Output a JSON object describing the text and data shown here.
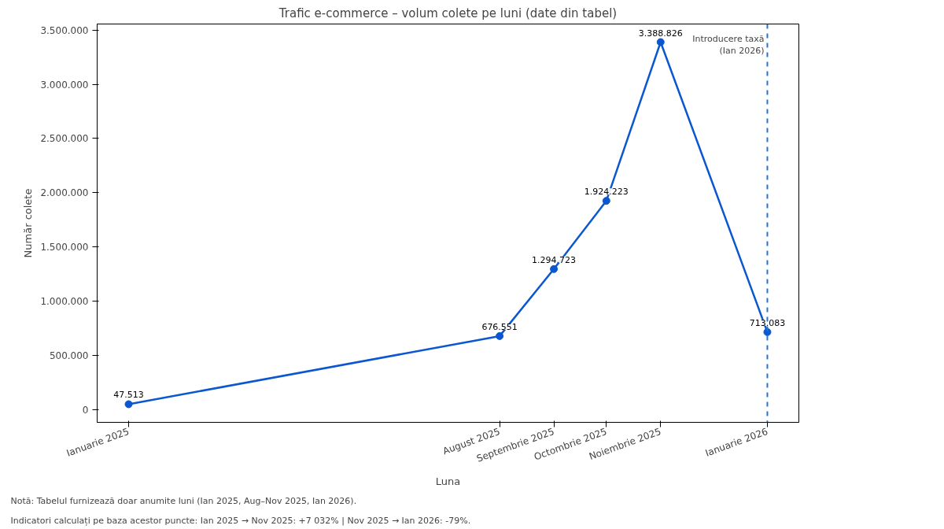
{
  "chart_data": {
    "type": "line",
    "title": "Trafic e-commerce – volum colete pe luni (date din tabel)",
    "xlabel": "Luna",
    "ylabel": "Număr colete",
    "x": [
      "2025-01",
      "2025-08",
      "2025-09",
      "2025-10",
      "2025-11",
      "2026-01"
    ],
    "series": [
      {
        "color": "#0b57d0",
        "values": [
          47513,
          676551,
          1294723,
          1924223,
          3388826,
          713083
        ],
        "value_labels": [
          "47.513",
          "676.551",
          "1.294.723",
          "1.924.223",
          "3.388.826",
          "713.083"
        ]
      }
    ],
    "xlim": [
      "2024-12-14",
      "2026-01-19"
    ],
    "xticks": [
      {
        "value": "2025-01",
        "label": "Ianuarie 2025"
      },
      {
        "value": "2025-08",
        "label": "August 2025"
      },
      {
        "value": "2025-09",
        "label": "Septembrie 2025"
      },
      {
        "value": "2025-10",
        "label": "Octombrie 2025"
      },
      {
        "value": "2025-11",
        "label": "Noiembrie 2025"
      },
      {
        "value": "2026-01",
        "label": "Ianuarie 2026"
      }
    ],
    "ylim": [
      -119553,
      3555892
    ],
    "yticks": [
      {
        "value": 0,
        "label": "0"
      },
      {
        "value": 500000,
        "label": "500.000"
      },
      {
        "value": 1000000,
        "label": "1.000.000"
      },
      {
        "value": 1500000,
        "label": "1.500.000"
      },
      {
        "value": 2000000,
        "label": "2.000.000"
      },
      {
        "value": 2500000,
        "label": "2.500.000"
      },
      {
        "value": 3000000,
        "label": "3.000.000"
      },
      {
        "value": 3500000,
        "label": "3.500.000"
      }
    ],
    "ref_lines": [
      {
        "axis": "x",
        "value": "2026-01",
        "label": "Introducere taxă\n(Ian 2026)",
        "color": "#1f77d4",
        "line_style": "dashed"
      }
    ],
    "annotations": [
      "Notă: Tabelul furnizează doar anumite luni (Ian 2025, Aug–Nov 2025, Ian 2026).",
      "Indicatori calculați pe baza acestor puncte: Ian 2025 → Nov 2025: +7 032%  |  Nov 2025 → Ian 2026: -79%."
    ],
    "grid": false,
    "marker": "circle",
    "line_style": "solid"
  }
}
